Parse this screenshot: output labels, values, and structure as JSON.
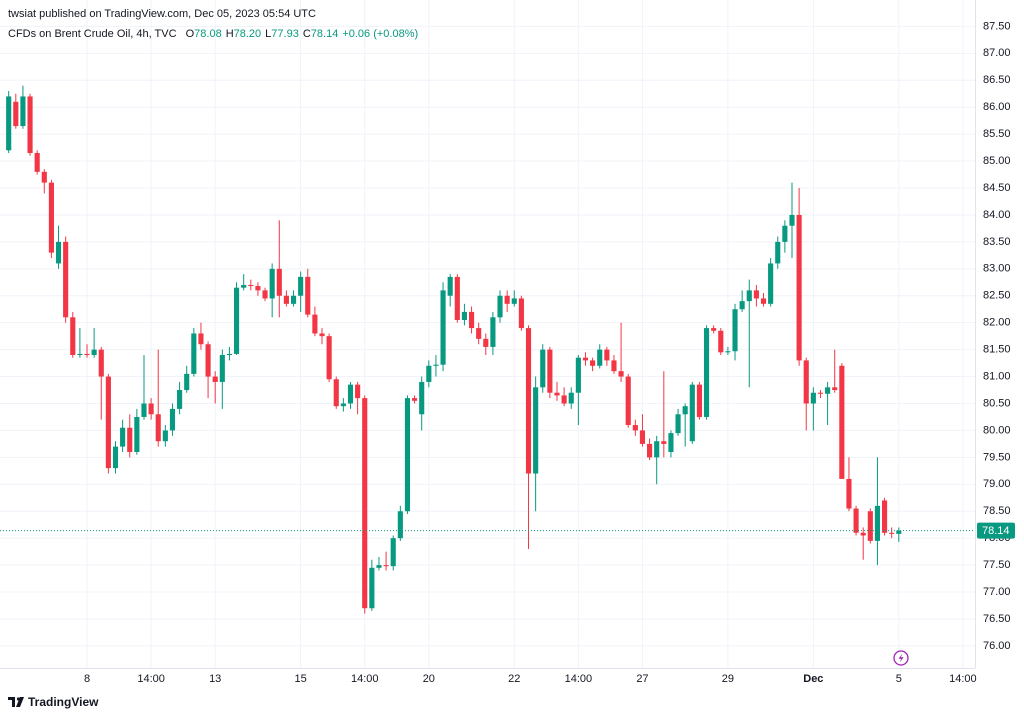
{
  "chart_data": {
    "type": "candlestick",
    "published": "twsiat published on TradingView.com, Dec 05, 2023 05:54 UTC",
    "legend_title": "CFDs on Brent Crude Oil, 4h, TVC",
    "ohlc_legend": [
      {
        "key": "O",
        "value": "78.08"
      },
      {
        "key": "H",
        "value": "78.20"
      },
      {
        "key": "L",
        "value": "77.93"
      },
      {
        "key": "C",
        "value": "78.14"
      }
    ],
    "change": "+0.06 (+0.08%)",
    "brand": "TradingView",
    "up_color": "#089981",
    "down_color": "#f23645",
    "grid": true,
    "xlim": [
      -1.22,
      135.7
    ],
    "xticks": [
      {
        "value": 11,
        "label": "8"
      },
      {
        "value": 20,
        "label": "14:00"
      },
      {
        "value": 29,
        "label": "13"
      },
      {
        "value": 41,
        "label": "15"
      },
      {
        "value": 50,
        "label": "14:00"
      },
      {
        "value": 59,
        "label": "20"
      },
      {
        "value": 71,
        "label": "22"
      },
      {
        "value": 80,
        "label": "14:00"
      },
      {
        "value": 89,
        "label": "27"
      },
      {
        "value": 101,
        "label": "29"
      },
      {
        "value": 113,
        "label": "Dec"
      },
      {
        "value": 125,
        "label": "5"
      },
      {
        "value": 134,
        "label": "14:00"
      }
    ],
    "ylim": [
      75.59,
      87.99
    ],
    "yticks": [
      {
        "value": 76,
        "label": "76.00"
      },
      {
        "value": 76.5,
        "label": "76.50"
      },
      {
        "value": 77,
        "label": "77.00"
      },
      {
        "value": 77.5,
        "label": "77.50"
      },
      {
        "value": 78,
        "label": "78.00"
      },
      {
        "value": 78.5,
        "label": "78.50"
      },
      {
        "value": 79,
        "label": "79.00"
      },
      {
        "value": 79.5,
        "label": "79.50"
      },
      {
        "value": 80,
        "label": "80.00"
      },
      {
        "value": 80.5,
        "label": "80.50"
      },
      {
        "value": 81,
        "label": "81.00"
      },
      {
        "value": 81.5,
        "label": "81.50"
      },
      {
        "value": 82,
        "label": "82.00"
      },
      {
        "value": 82.5,
        "label": "82.50"
      },
      {
        "value": 83,
        "label": "83.00"
      },
      {
        "value": 83.5,
        "label": "83.50"
      },
      {
        "value": 84,
        "label": "84.00"
      },
      {
        "value": 84.5,
        "label": "84.50"
      },
      {
        "value": 85,
        "label": "85.00"
      },
      {
        "value": 85.5,
        "label": "85.50"
      },
      {
        "value": 86,
        "label": "86.00"
      },
      {
        "value": 86.5,
        "label": "86.50"
      },
      {
        "value": 87,
        "label": "87.00"
      },
      {
        "value": 87.5,
        "label": "87.50"
      }
    ],
    "open": [
      85.2,
      86.1,
      85.65,
      86.2,
      85.15,
      84.8,
      84.6,
      83.1,
      83.5,
      82.1,
      81.4,
      81.42,
      81.4,
      81.5,
      81.0,
      79.3,
      79.7,
      80.05,
      79.6,
      80.25,
      80.5,
      80.3,
      79.8,
      80.0,
      80.4,
      80.75,
      81.05,
      81.8,
      81.6,
      81.0,
      80.9,
      81.4,
      81.42,
      82.65,
      82.7,
      82.68,
      82.6,
      82.45,
      83.0,
      82.5,
      82.35,
      82.5,
      82.85,
      82.15,
      81.8,
      81.75,
      80.95,
      80.45,
      80.5,
      80.85,
      80.6,
      76.7,
      77.45,
      77.5,
      77.48,
      78.0,
      78.5,
      80.6,
      80.3,
      80.9,
      81.2,
      81.22,
      82.5,
      82.85,
      82.05,
      82.2,
      81.9,
      81.7,
      81.55,
      82.1,
      82.5,
      82.35,
      82.45,
      81.9,
      79.2,
      80.8,
      81.5,
      80.7,
      80.65,
      80.5,
      80.7,
      81.35,
      81.3,
      81.2,
      81.5,
      81.3,
      81.1,
      81.0,
      80.1,
      80.0,
      79.75,
      79.5,
      79.8,
      79.6,
      79.95,
      80.3,
      79.8,
      80.85,
      80.25,
      81.9,
      81.85,
      81.45,
      81.47,
      82.25,
      82.4,
      82.6,
      82.45,
      82.35,
      83.1,
      83.5,
      83.8,
      84.0,
      81.3,
      80.5,
      80.7,
      80.68,
      80.8,
      81.2,
      79.1,
      78.55,
      78.1,
      78.5,
      77.95,
      78.7,
      78.1,
      78.08
    ],
    "high": [
      86.3,
      86.25,
      86.4,
      86.25,
      85.2,
      84.85,
      84.65,
      83.8,
      83.6,
      82.2,
      81.9,
      81.6,
      81.9,
      81.55,
      81.05,
      79.8,
      80.2,
      80.3,
      80.4,
      81.4,
      80.6,
      81.5,
      80.1,
      80.5,
      80.9,
      81.2,
      81.9,
      82.0,
      81.65,
      81.1,
      81.5,
      81.55,
      82.75,
      82.9,
      82.8,
      82.75,
      82.65,
      83.1,
      83.9,
      82.6,
      82.6,
      82.95,
      83.0,
      82.3,
      81.9,
      81.8,
      81.0,
      80.6,
      80.9,
      80.9,
      80.65,
      77.6,
      77.65,
      77.75,
      78.05,
      78.6,
      80.65,
      80.65,
      81.0,
      81.3,
      81.4,
      82.75,
      82.9,
      82.9,
      82.35,
      82.3,
      82.0,
      81.8,
      82.2,
      82.6,
      82.6,
      82.6,
      82.5,
      81.95,
      81.0,
      81.6,
      81.55,
      80.9,
      80.8,
      80.8,
      81.4,
      81.45,
      81.35,
      81.6,
      81.55,
      81.4,
      82.0,
      81.05,
      80.2,
      80.3,
      79.85,
      79.9,
      81.1,
      80.0,
      80.4,
      80.5,
      80.9,
      80.9,
      81.95,
      81.95,
      81.9,
      81.55,
      82.35,
      82.6,
      82.8,
      82.7,
      82.55,
      83.2,
      83.6,
      83.9,
      84.6,
      84.5,
      81.35,
      80.8,
      80.75,
      80.9,
      81.5,
      81.25,
      79.5,
      78.6,
      78.2,
      78.55,
      79.5,
      78.75,
      78.2,
      78.2
    ],
    "low": [
      85.15,
      85.6,
      85.6,
      85.1,
      84.75,
      84.4,
      83.2,
      83.0,
      82.0,
      81.35,
      81.35,
      81.35,
      81.35,
      80.2,
      79.2,
      79.2,
      79.6,
      79.5,
      79.55,
      80.2,
      80.2,
      79.7,
      79.7,
      79.9,
      80.3,
      80.7,
      81.0,
      81.5,
      80.6,
      80.5,
      80.4,
      81.3,
      81.4,
      82.6,
      82.6,
      82.5,
      82.4,
      82.1,
      82.1,
      82.3,
      82.3,
      82.2,
      82.1,
      81.75,
      81.6,
      80.9,
      80.4,
      80.35,
      80.4,
      80.3,
      76.6,
      76.65,
      77.4,
      77.4,
      77.4,
      77.95,
      78.45,
      80.5,
      80.0,
      80.8,
      81.0,
      81.1,
      82.3,
      82.0,
      81.95,
      81.8,
      81.6,
      81.4,
      81.4,
      82.0,
      82.2,
      82.3,
      81.85,
      77.8,
      78.5,
      80.7,
      80.6,
      80.55,
      80.45,
      80.4,
      80.1,
      81.2,
      81.1,
      81.15,
      81.2,
      81.05,
      80.9,
      80.05,
      79.9,
      79.7,
      79.45,
      79.0,
      79.5,
      79.5,
      79.9,
      79.7,
      79.75,
      80.2,
      80.2,
      81.8,
      81.4,
      81.4,
      81.3,
      82.2,
      80.8,
      82.3,
      82.3,
      82.3,
      83.0,
      83.3,
      83.2,
      81.2,
      80.0,
      80.0,
      80.6,
      80.1,
      80.7,
      79.1,
      78.5,
      78.05,
      77.6,
      77.9,
      77.5,
      78.05,
      78.0,
      77.93
    ],
    "close": [
      86.2,
      85.65,
      86.2,
      85.15,
      84.8,
      84.6,
      83.3,
      83.5,
      82.1,
      81.4,
      81.42,
      81.4,
      81.5,
      81.0,
      79.3,
      79.7,
      80.05,
      79.6,
      80.25,
      80.5,
      80.3,
      79.8,
      80.0,
      80.4,
      80.75,
      81.05,
      81.8,
      81.6,
      81.0,
      80.9,
      81.4,
      81.42,
      82.65,
      82.7,
      82.68,
      82.6,
      82.45,
      83.0,
      82.5,
      82.35,
      82.5,
      82.85,
      82.15,
      81.8,
      81.75,
      80.95,
      80.45,
      80.5,
      80.85,
      80.6,
      76.7,
      77.45,
      77.5,
      77.48,
      78.0,
      78.5,
      80.6,
      80.55,
      80.9,
      81.2,
      81.22,
      82.6,
      82.85,
      82.05,
      82.2,
      81.9,
      81.7,
      81.55,
      82.1,
      82.5,
      82.35,
      82.45,
      81.9,
      79.2,
      80.8,
      81.5,
      80.7,
      80.65,
      80.5,
      80.7,
      81.35,
      81.3,
      81.2,
      81.5,
      81.3,
      81.1,
      81.0,
      80.1,
      80.0,
      79.75,
      79.5,
      79.8,
      79.75,
      79.95,
      80.3,
      80.45,
      80.85,
      80.25,
      81.9,
      81.85,
      81.45,
      81.47,
      82.25,
      82.4,
      82.6,
      82.45,
      82.35,
      83.1,
      83.5,
      83.8,
      84.0,
      81.3,
      80.5,
      80.7,
      80.68,
      80.8,
      80.75,
      79.1,
      78.55,
      78.1,
      78.05,
      77.95,
      78.6,
      78.1,
      78.08,
      78.14
    ]
  }
}
